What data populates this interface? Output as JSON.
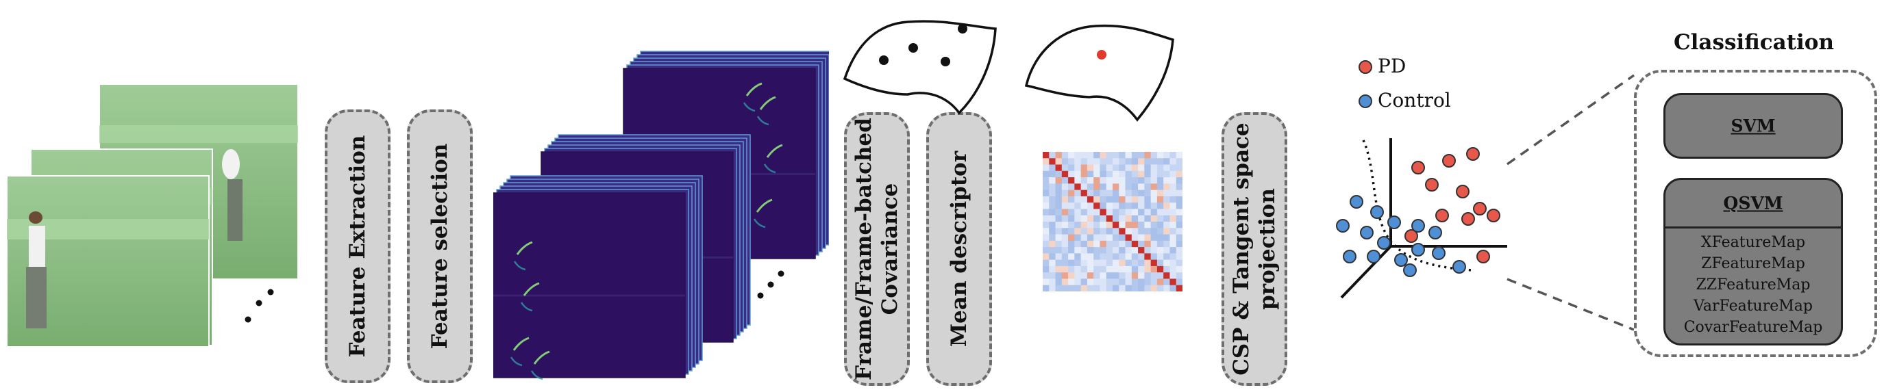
{
  "stages": {
    "feature_extraction": "Feature Extraction",
    "feature_selection": "Feature selection",
    "covariance_line1": "Frame/Frame-batched",
    "covariance_line2": "Covariance",
    "mean_descriptor": "Mean descriptor",
    "projection_line1": "CSP & Tangent space",
    "projection_line2": "projection"
  },
  "legend": {
    "pd": "PD",
    "control": "Control",
    "pd_color": "#e8584a",
    "control_color": "#4f8fd6"
  },
  "classification": {
    "title": "Classification",
    "svm_label": "SVM",
    "qsvm_label": "QSVM",
    "feature_maps": [
      "XFeatureMap",
      "ZFeatureMap",
      "ZZFeatureMap",
      "VarFeatureMap",
      "CovarFeatureMap"
    ]
  },
  "icons": {
    "video_frames": "video-frames-stack",
    "spectrograms": "spectrogram-stack",
    "manifold_points": "manifold-with-points",
    "manifold_mean": "manifold-with-mean-point",
    "covariance_matrix": "covariance-heatmap",
    "scatter": "3d-scatter-plot"
  },
  "colors": {
    "pill_fill": "#d3d3d3",
    "pill_border": "#6e6e6e",
    "classifier_fill": "#7d7d7d",
    "frame_green": "#8fbf86",
    "spectrogram_bg": "#2e1060",
    "heatmap_diag": "#c9302c",
    "heatmap_base": "#c6d6f2"
  }
}
